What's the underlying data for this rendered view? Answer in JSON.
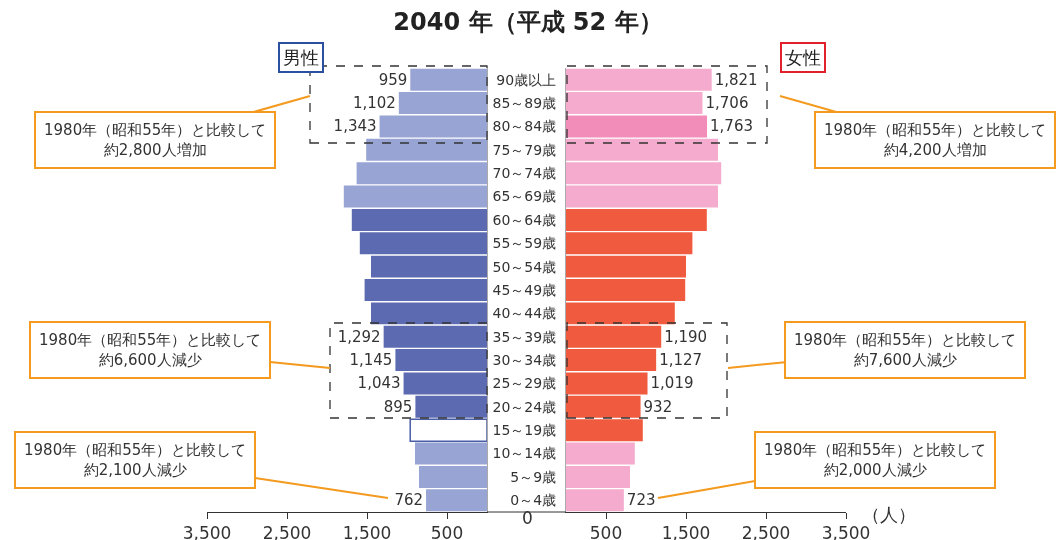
{
  "chart_data": [
    {
      "type": "bar",
      "orientation": "horizontal",
      "title": "2040 年（平成 52 年）",
      "subtitle": "男性",
      "categories": [
        null,
        null,
        null,
        null,
        null,
        null,
        null,
        null,
        null,
        null,
        null,
        null,
        null,
        null,
        null,
        null,
        null,
        null,
        null
      ],
      "values": [
        959,
        1102,
        1343,
        1510,
        1630,
        1790,
        1690,
        1590,
        1450,
        1530,
        1450,
        1292,
        1145,
        1043,
        895,
        960,
        900,
        850,
        762
      ],
      "colors": [
        "#97a4d4",
        "#97a4d4",
        "#97a4d4",
        "#97a4d4",
        "#97a4d4",
        "#97a4d4",
        "#5c6bb1",
        "#5c6bb1",
        "#5c6bb1",
        "#5c6bb1",
        "#5c6bb1",
        "#5c6bb1",
        "#5c6bb1",
        "#5c6bb1",
        "#5c6bb1",
        "#ffffff",
        "#97a4d4",
        "#97a4d4",
        "#97a4d4"
      ],
      "value_labels": [
        "959",
        "1,102",
        "1,343",
        null,
        null,
        null,
        null,
        null,
        null,
        null,
        null,
        "1,292",
        "1,145",
        "1,043",
        "895",
        null,
        null,
        null,
        "762"
      ],
      "xlim": [
        3500,
        0
      ],
      "xticks": [
        {
          "value": 3500,
          "label": "3,500"
        },
        {
          "value": 2500,
          "label": "2,500"
        },
        {
          "value": 1500,
          "label": "1,500"
        },
        500
      ],
      "tick_labels": "x",
      "annotations": [
        "1980年（昭和55年）と比較して約2,800人増加",
        "1980年（昭和55年）と比較して約6,600人減少",
        "1980年（昭和55年）と比較して約2,100人減少",
        "0"
      ]
    },
    {
      "type": "bar",
      "orientation": "horizontal",
      "subtitle": "女性",
      "xlabel": "（人）",
      "categories": [
        "90歳以上",
        "85～89歳",
        "80～84歳",
        "75～79歳",
        "70～74歳",
        "65～69歳",
        "60～64歳",
        "55～59歳",
        "50～54歳",
        "45～49歳",
        "40～44歳",
        "35～39歳",
        "30～34歳",
        "25～29歳",
        "20～24歳",
        "15～19歳",
        "10～14歳",
        "5～9歳",
        "0～4歳"
      ],
      "values": [
        1821,
        1706,
        1763,
        1900,
        1940,
        1900,
        1760,
        1580,
        1500,
        1490,
        1360,
        1190,
        1127,
        1019,
        932,
        960,
        860,
        800,
        723
      ],
      "colors": [
        "#f4abcd",
        "#f4abcd",
        "#f28cb9",
        "#f4abcd",
        "#f4abcd",
        "#f4abcd",
        "#f05a3e",
        "#f05a3e",
        "#f05a3e",
        "#f05a3e",
        "#f05a3e",
        "#f05a3e",
        "#f05a3e",
        "#f05a3e",
        "#f05a3e",
        "#f05a3e",
        "#f4abcd",
        "#f4abcd",
        "#f4abcd"
      ],
      "value_labels": [
        "1,821",
        "1,706",
        "1,763",
        null,
        null,
        null,
        null,
        null,
        null,
        null,
        null,
        "1,190",
        "1,127",
        "1,019",
        "932",
        null,
        null,
        null,
        "723"
      ],
      "xlim": [
        0,
        3500
      ],
      "xticks": [
        500,
        {
          "value": 1500,
          "label": "1,500"
        },
        {
          "value": 2500,
          "label": "2,500"
        },
        {
          "value": 3500,
          "label": "3,500"
        }
      ],
      "annotations": [
        "1980年（昭和55年）と比較して約4,200人増加",
        "1980年（昭和55年）と比較して約7,600人減少",
        "1980年（昭和55年）と比較して約2,000人減少"
      ]
    }
  ]
}
